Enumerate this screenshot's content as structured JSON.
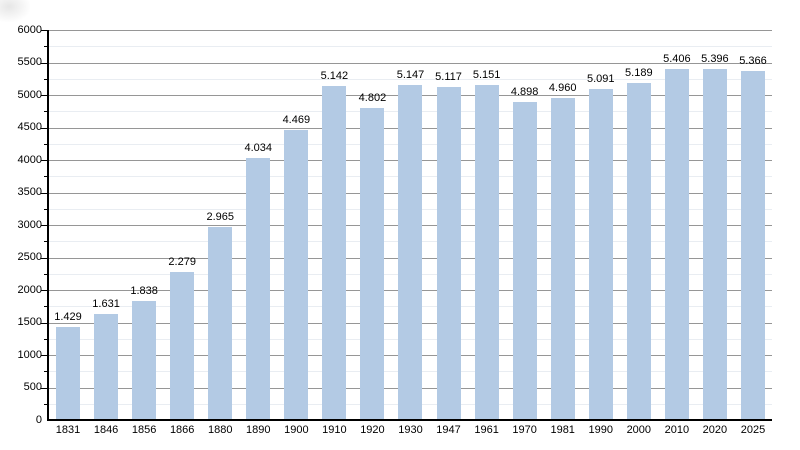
{
  "chart_data": {
    "type": "bar",
    "title": "",
    "xlabel": "",
    "ylabel": "",
    "categories": [
      "1831",
      "1846",
      "1856",
      "1866",
      "1880",
      "1890",
      "1900",
      "1910",
      "1920",
      "1930",
      "1947",
      "1961",
      "1970",
      "1981",
      "1990",
      "2000",
      "2010",
      "2020",
      "2025"
    ],
    "values": [
      1429,
      1631,
      1838,
      2279,
      2965,
      4034,
      4469,
      5142,
      4802,
      5147,
      5117,
      5151,
      4898,
      4960,
      5091,
      5189,
      5406,
      5396,
      5366
    ],
    "value_labels": [
      "1.429",
      "1.631",
      "1.838",
      "2.279",
      "2.965",
      "4.034",
      "4.469",
      "5.142",
      "4.802",
      "5.147",
      "5.117",
      "5.151",
      "4.898",
      "4.960",
      "5.091",
      "5.189",
      "5.406",
      "5.396",
      "5.366"
    ],
    "ylim": [
      0,
      6000
    ],
    "y_major_step": 500,
    "y_minor_step": 250,
    "y_tick_labels": [
      "0",
      "500",
      "1000",
      "1500",
      "2000",
      "2500",
      "3000",
      "3500",
      "4000",
      "4500",
      "5000",
      "5500",
      "6000"
    ],
    "grid": "major-and-minor-horizontal",
    "legend": "none",
    "colors": {
      "bar_fill": "#b3cae4",
      "major_grid": "#969696",
      "minor_grid": "#e9edf2",
      "axis": "#000000",
      "text": "#000000",
      "background": "#ffffff"
    }
  }
}
